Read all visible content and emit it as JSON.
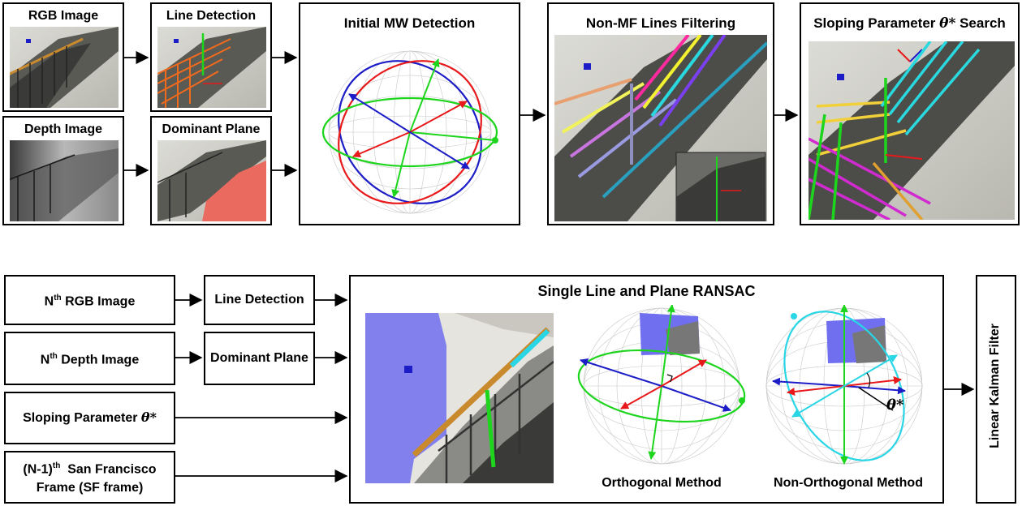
{
  "top": {
    "rgb_image": "RGB Image",
    "depth_image": "Depth Image",
    "line_detection": "Line Detection",
    "dominant_plane": "Dominant Plane",
    "initial_mw": "Initial MW Detection",
    "non_mf": "Non-MF Lines Filtering",
    "sloping_search_prefix": "Sloping Parameter ",
    "sloping_search_symbol": "θ*",
    "sloping_search_suffix": " Search"
  },
  "bottom": {
    "nth_rgb_prefix": "N",
    "nth_rgb_sup": "th",
    "nth_rgb_suffix": " RGB Image",
    "nth_depth_prefix": "N",
    "nth_depth_sup": "th",
    "nth_depth_suffix": " Depth Image",
    "sloping_param_prefix": "Sloping Parameter ",
    "sloping_param_symbol": "θ*",
    "sf_line1_prefix": "(N-1)",
    "sf_line1_sup": "th",
    "sf_line1_suffix": "  San Francisco",
    "sf_line2": "Frame (SF frame)",
    "line_detection": "Line Detection",
    "dominant_plane": "Dominant Plane",
    "ransac_title": "Single Line and Plane RANSAC",
    "orthogonal": "Orthogonal Method",
    "non_orthogonal": "Non-Orthogonal Method",
    "theta_label": "θ*",
    "kalman": "Linear Kalman Filter"
  },
  "colors": {
    "red": "#e8191b",
    "green": "#1ed51e",
    "blue": "#1d1dc8",
    "cyan": "#29d6e6",
    "plane_salmon": "#ea6a60",
    "plane_blue": "#6f6ff0"
  }
}
